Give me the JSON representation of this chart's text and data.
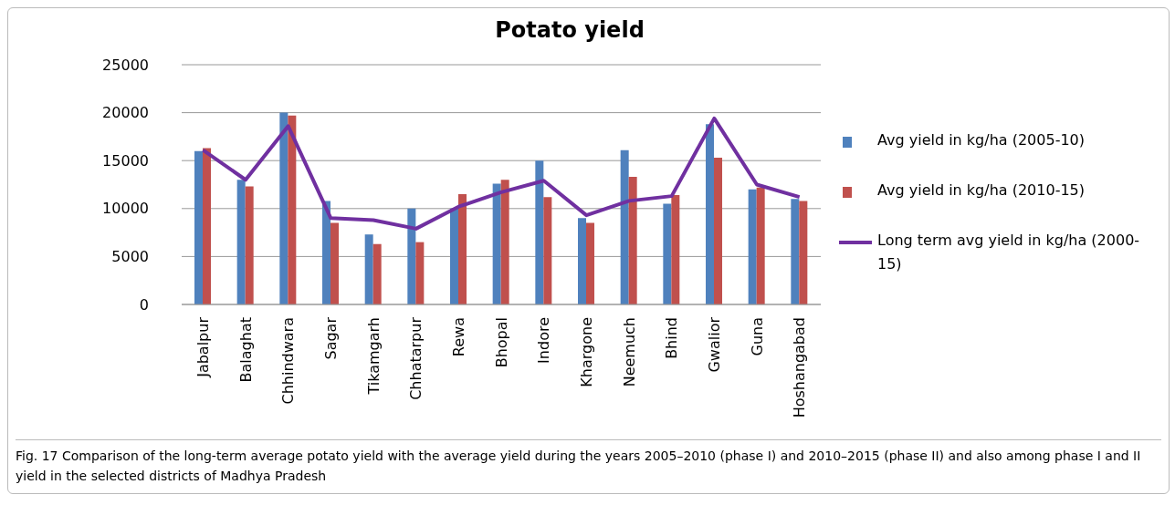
{
  "chart_data": {
    "type": "bar",
    "title": "Potato yield",
    "categories": [
      "Jabalpur",
      "Balaghat",
      "Chhindwara",
      "Sagar",
      "Tikamgarh",
      "Chhatarpur",
      "Rewa",
      "Bhopal",
      "Indore",
      "Khargone",
      "Neemuch",
      "Bhind",
      "Gwalior",
      "Guna",
      "Hoshangabad"
    ],
    "series": [
      {
        "name": "Avg yield in kg/ha (2005-10)",
        "color": "#4f81bd",
        "values": [
          16000,
          13000,
          20000,
          10800,
          7300,
          10000,
          10000,
          12600,
          15000,
          9000,
          16100,
          10500,
          18800,
          12000,
          11000
        ]
      },
      {
        "name": "Avg yield in kg/ha (2010-15)",
        "color": "#c0504d",
        "values": [
          16300,
          12300,
          19700,
          8500,
          6300,
          6500,
          11500,
          13000,
          11200,
          8500,
          13300,
          11400,
          15300,
          12200,
          10800
        ]
      },
      {
        "name": "Long term avg yield in kg/ha (2000-15)",
        "type": "line",
        "color": "#7030a0",
        "marker": "none",
        "values": [
          16100,
          13000,
          18600,
          9000,
          8800,
          7900,
          10200,
          11700,
          12900,
          9300,
          10800,
          11300,
          19400,
          12500,
          11200
        ]
      }
    ],
    "ylim": [
      0,
      25000
    ],
    "yticks": [
      0,
      5000,
      10000,
      15000,
      20000,
      25000
    ],
    "grid": "y",
    "legend": "right",
    "annotations": [
      "Fig. 17 Comparison of the long-term average potato yield with the average yield during the years 2005–2010 (phase I) and 2010–2015 (phase II) and also among phase I and II yield in the selected districts of Madhya Pradesh"
    ]
  }
}
